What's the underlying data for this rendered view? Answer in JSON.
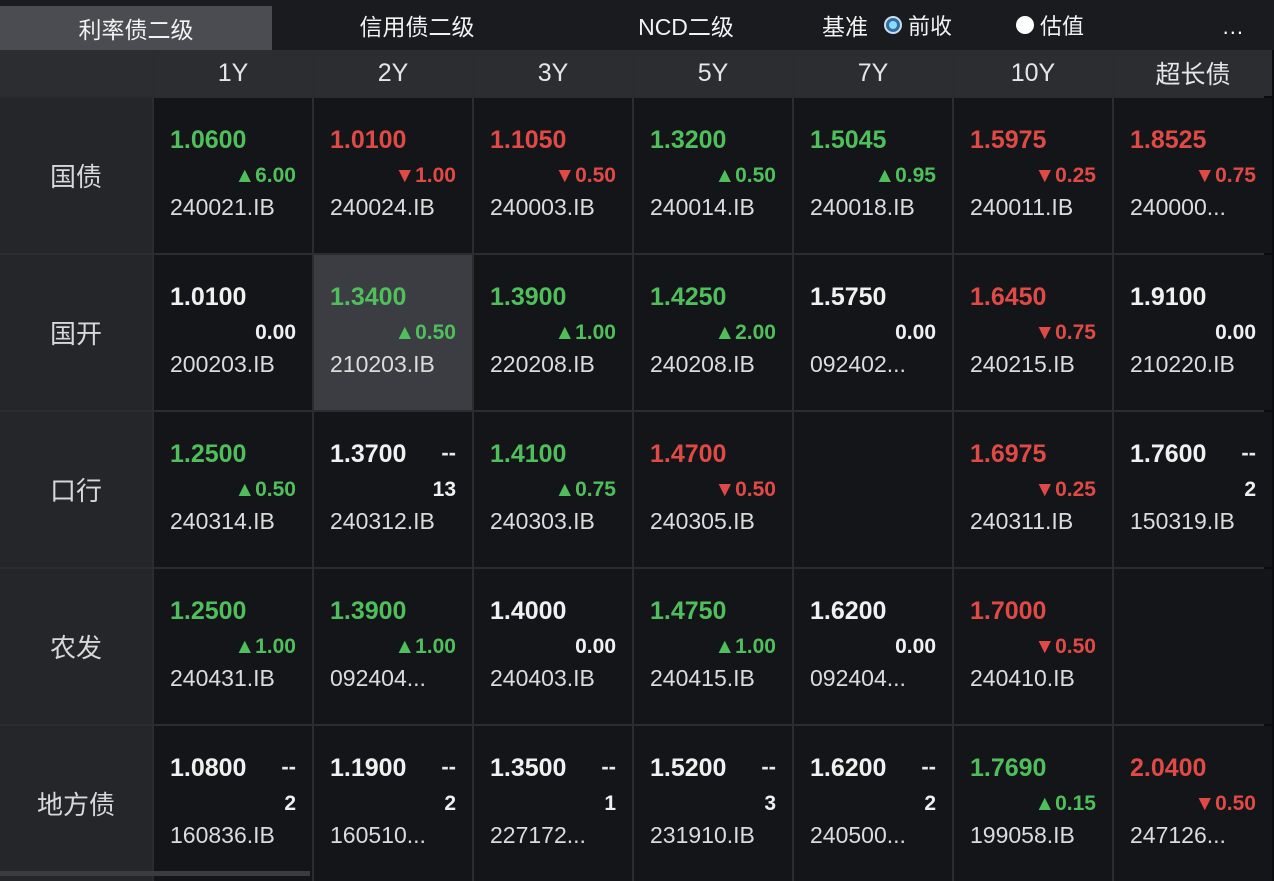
{
  "tabs": [
    {
      "label": "利率债二级",
      "active": true
    },
    {
      "label": "信用债二级",
      "active": false
    },
    {
      "label": "NCD二级",
      "active": false
    }
  ],
  "benchmark": {
    "label": "基准",
    "options": [
      {
        "label": "前收",
        "selected": true
      },
      {
        "label": "估值",
        "selected": false
      }
    ]
  },
  "more_label": "...",
  "columns": [
    "1Y",
    "2Y",
    "3Y",
    "5Y",
    "7Y",
    "10Y",
    "超长债"
  ],
  "colors": {
    "up": "#4fbf5c",
    "down": "#e04a46",
    "flat": "#f0f0f0"
  },
  "rows": [
    {
      "label": "国债",
      "cells": [
        {
          "rate": "1.0600",
          "change": "▲6.00",
          "code": "240021.IB",
          "color": "green"
        },
        {
          "rate": "1.0100",
          "change": "▼1.00",
          "code": "240024.IB",
          "color": "red"
        },
        {
          "rate": "1.1050",
          "change": "▼0.50",
          "code": "240003.IB",
          "color": "red"
        },
        {
          "rate": "1.3200",
          "change": "▲0.50",
          "code": "240014.IB",
          "color": "green"
        },
        {
          "rate": "1.5045",
          "change": "▲0.95",
          "code": "240018.IB",
          "color": "green"
        },
        {
          "rate": "1.5975",
          "change": "▼0.25",
          "code": "240011.IB",
          "color": "red"
        },
        {
          "rate": "1.8525",
          "change": "▼0.75",
          "code": "240000...",
          "color": "red"
        }
      ]
    },
    {
      "label": "国开",
      "cells": [
        {
          "rate": "1.0100",
          "change": "0.00",
          "code": "200203.IB",
          "color": "white"
        },
        {
          "rate": "1.3400",
          "change": "▲0.50",
          "code": "210203.IB",
          "color": "green",
          "highlight": true
        },
        {
          "rate": "1.3900",
          "change": "▲1.00",
          "code": "220208.IB",
          "color": "green"
        },
        {
          "rate": "1.4250",
          "change": "▲2.00",
          "code": "240208.IB",
          "color": "green"
        },
        {
          "rate": "1.5750",
          "change": "0.00",
          "code": "092402...",
          "color": "white"
        },
        {
          "rate": "1.6450",
          "change": "▼0.75",
          "code": "240215.IB",
          "color": "red"
        },
        {
          "rate": "1.9100",
          "change": "0.00",
          "code": "210220.IB",
          "color": "white"
        }
      ]
    },
    {
      "label": "口行",
      "cells": [
        {
          "rate": "1.2500",
          "change": "▲0.50",
          "code": "240314.IB",
          "color": "green"
        },
        {
          "rate": "1.3700",
          "dash": "--",
          "change": "13",
          "code": "240312.IB",
          "color": "white"
        },
        {
          "rate": "1.4100",
          "change": "▲0.75",
          "code": "240303.IB",
          "color": "green"
        },
        {
          "rate": "1.4700",
          "change": "▼0.50",
          "code": "240305.IB",
          "color": "red"
        },
        {
          "empty": true
        },
        {
          "rate": "1.6975",
          "change": "▼0.25",
          "code": "240311.IB",
          "color": "red"
        },
        {
          "rate": "1.7600",
          "dash": "--",
          "change": "2",
          "code": "150319.IB",
          "color": "white"
        }
      ]
    },
    {
      "label": "农发",
      "cells": [
        {
          "rate": "1.2500",
          "change": "▲1.00",
          "code": "240431.IB",
          "color": "green"
        },
        {
          "rate": "1.3900",
          "change": "▲1.00",
          "code": "092404...",
          "color": "green"
        },
        {
          "rate": "1.4000",
          "change": "0.00",
          "code": "240403.IB",
          "color": "white"
        },
        {
          "rate": "1.4750",
          "change": "▲1.00",
          "code": "240415.IB",
          "color": "green"
        },
        {
          "rate": "1.6200",
          "change": "0.00",
          "code": "092404...",
          "color": "white"
        },
        {
          "rate": "1.7000",
          "change": "▼0.50",
          "code": "240410.IB",
          "color": "red"
        },
        {
          "empty": true
        }
      ]
    },
    {
      "label": "地方债",
      "cells": [
        {
          "rate": "1.0800",
          "dash": "--",
          "change": "2",
          "code": "160836.IB",
          "color": "white"
        },
        {
          "rate": "1.1900",
          "dash": "--",
          "change": "2",
          "code": "160510...",
          "color": "white"
        },
        {
          "rate": "1.3500",
          "dash": "--",
          "change": "1",
          "code": "227172...",
          "color": "white"
        },
        {
          "rate": "1.5200",
          "dash": "--",
          "change": "3",
          "code": "231910.IB",
          "color": "white"
        },
        {
          "rate": "1.6200",
          "dash": "--",
          "change": "2",
          "code": "240500...",
          "color": "white"
        },
        {
          "rate": "1.7690",
          "change": "▲0.15",
          "code": "199058.IB",
          "color": "green"
        },
        {
          "rate": "2.0400",
          "change": "▼0.50",
          "code": "247126...",
          "color": "red"
        }
      ]
    }
  ]
}
